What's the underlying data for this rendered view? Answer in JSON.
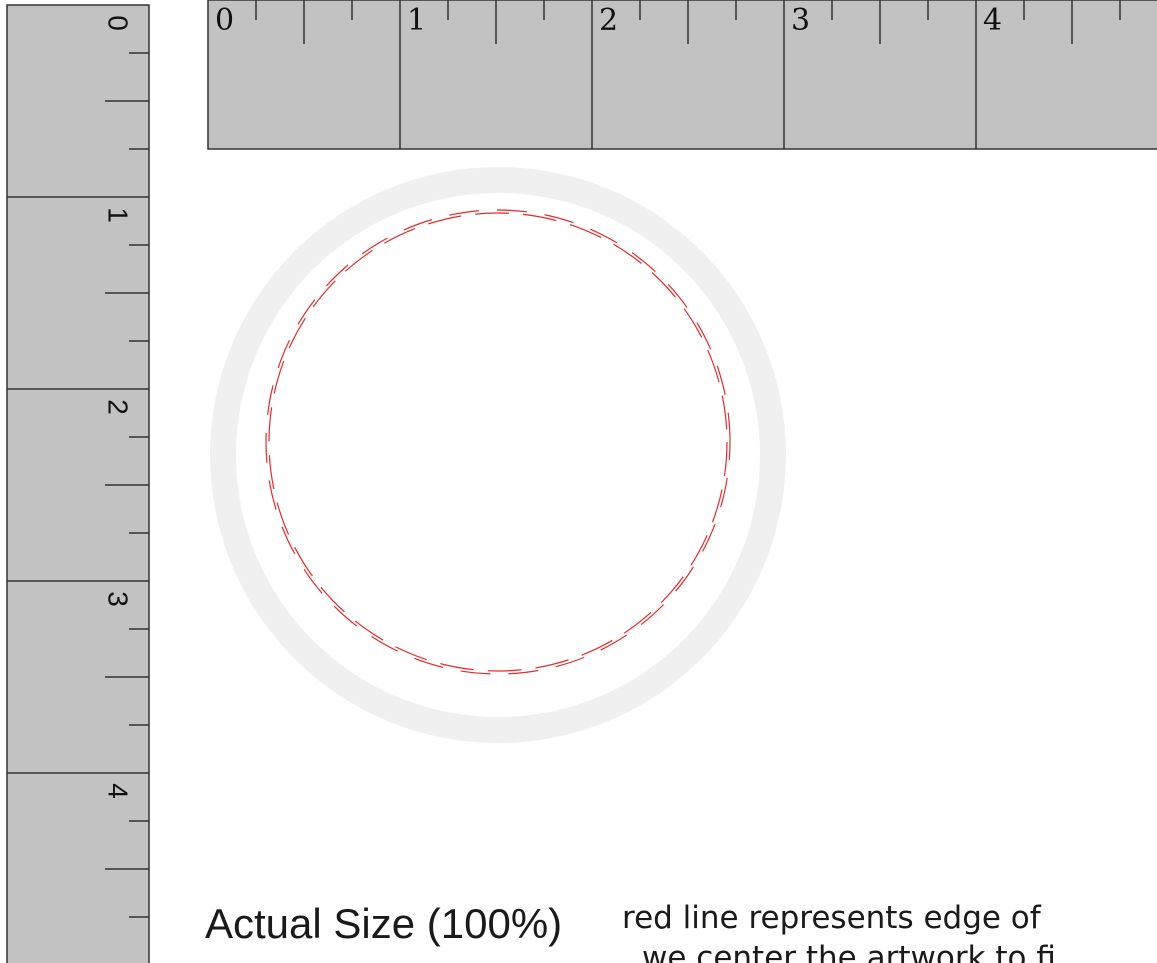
{
  "rulers": {
    "unit_labels": [
      "0",
      "1",
      "2",
      "3",
      "4"
    ],
    "colors": {
      "fill": "#c2c2c2",
      "stroke": "#333333",
      "text": "#111111"
    }
  },
  "circle": {
    "colors": {
      "outer_ring": "#f0f0f0",
      "inner": "#ffffff",
      "cut_line": "#e52b2b"
    },
    "line_style": "dashed"
  },
  "labels": {
    "actual_size": "Actual Size (100%)",
    "note_line1": "red line represents edge of",
    "note_line2": "we center the artwork to fi"
  }
}
